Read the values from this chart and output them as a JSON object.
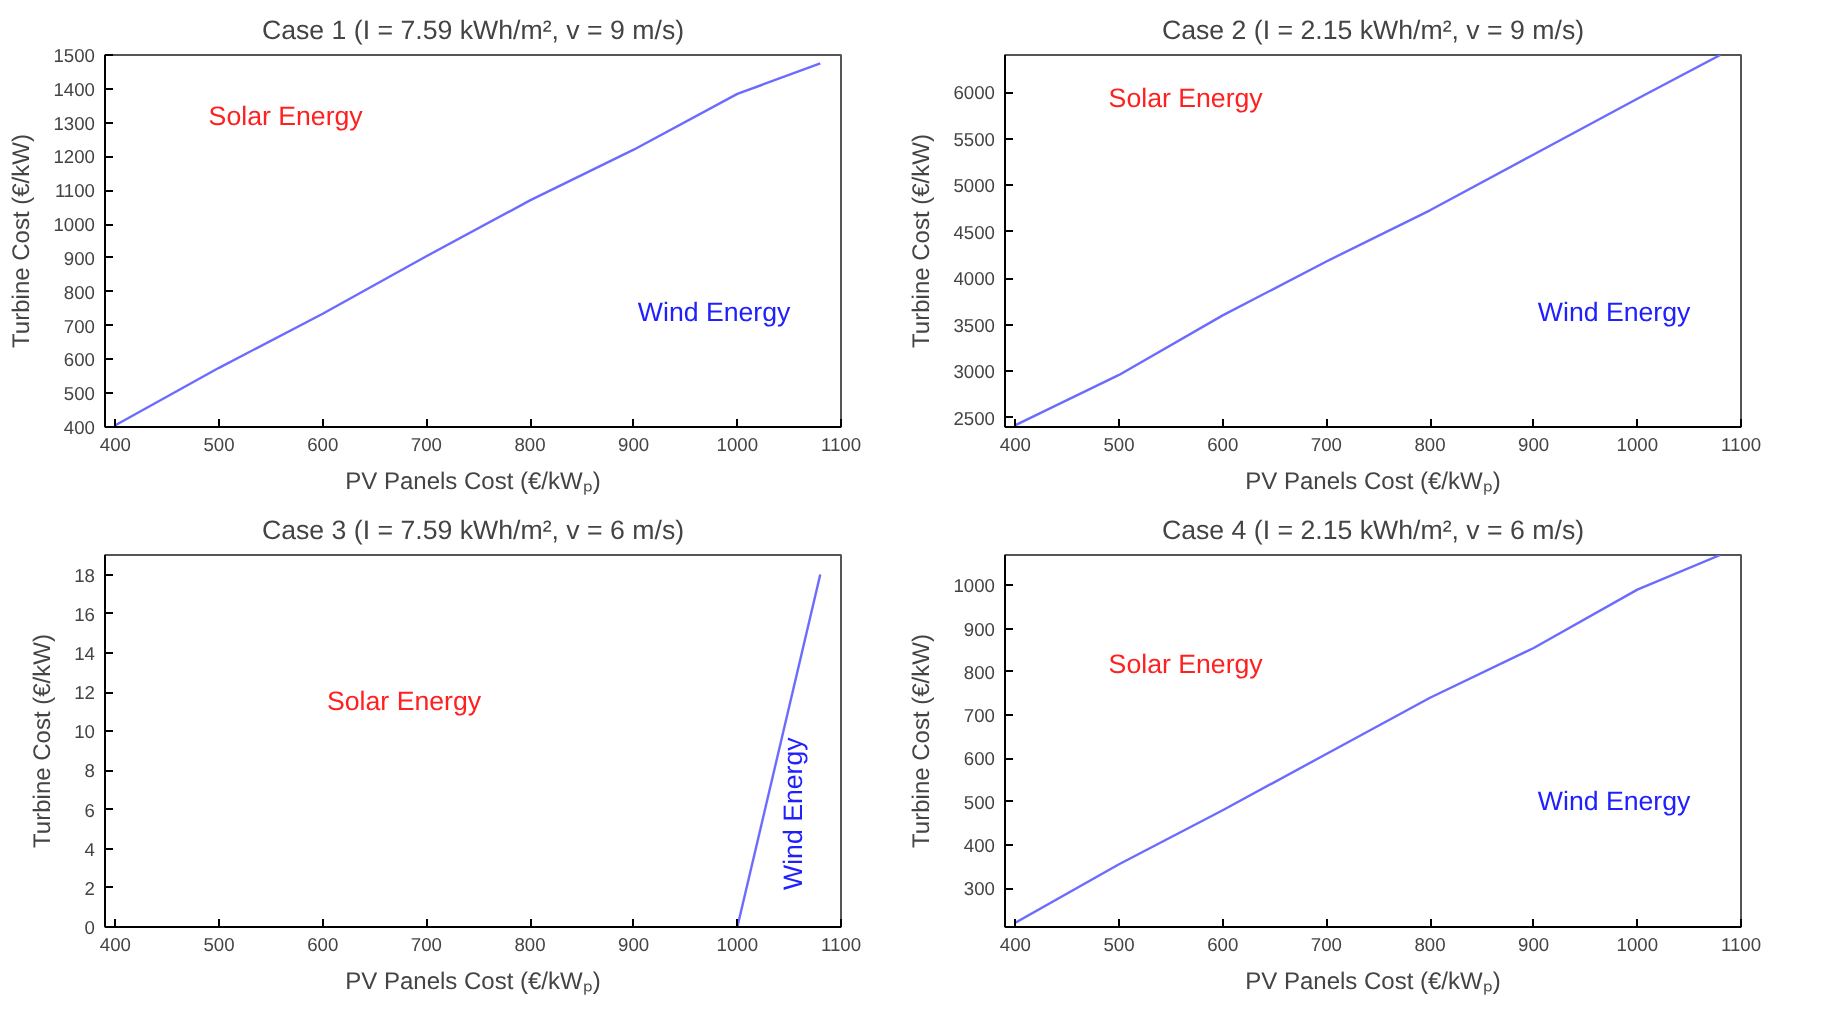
{
  "chart_data": [
    {
      "type": "line",
      "title": "Case 1 (I = 7.59 kWh/m², v = 9 m/s)",
      "xlabel": "PV Panels Cost (€/kWₚ)",
      "ylabel": "Turbine Cost (€/kW)",
      "x": [
        400,
        500,
        600,
        700,
        800,
        900,
        1000,
        1080
      ],
      "series": [
        {
          "color": "#6b6bff",
          "values": [
            405,
            575,
            735,
            905,
            1070,
            1220,
            1385,
            1475
          ]
        }
      ],
      "xlim": [
        390,
        1100
      ],
      "xticks": [
        400,
        500,
        600,
        700,
        800,
        900,
        1000,
        1100
      ],
      "ylim": [
        400,
        1500
      ],
      "yticks": [
        400,
        500,
        600,
        700,
        800,
        900,
        1000,
        1100,
        1200,
        1300,
        1400,
        1500
      ],
      "grid": false,
      "annotations": [
        "Solar Energy",
        "Wind Energy"
      ]
    },
    {
      "type": "line",
      "title": "Case 2 (I = 2.15 kWh/m², v = 9 m/s)",
      "xlabel": "PV Panels Cost (€/kWₚ)",
      "ylabel": "Turbine Cost (€/kW)",
      "x": [
        400,
        500,
        600,
        700,
        800,
        900,
        1000,
        1080
      ],
      "series": [
        {
          "color": "#6b6bff",
          "values": [
            2420,
            2960,
            3600,
            4180,
            4730,
            5330,
            5930,
            6400
          ]
        }
      ],
      "xlim": [
        390,
        1100
      ],
      "xticks": [
        400,
        500,
        600,
        700,
        800,
        900,
        1000,
        1100
      ],
      "ylim": [
        2400,
        6400
      ],
      "yticks": [
        2500,
        3000,
        3500,
        4000,
        4500,
        5000,
        5500,
        6000
      ],
      "grid": false,
      "annotations": [
        "Solar Energy",
        "Wind Energy"
      ]
    },
    {
      "type": "line",
      "title": "Case 3 (I = 7.59 kWh/m², v = 6 m/s)",
      "xlabel": "PV Panels Cost (€/kWₚ)",
      "ylabel": "Turbine Cost (€/kW)",
      "x": [
        1000,
        1080
      ],
      "series": [
        {
          "color": "#6b6bff",
          "values": [
            0,
            18
          ]
        }
      ],
      "xlim": [
        390,
        1100
      ],
      "xticks": [
        400,
        500,
        600,
        700,
        800,
        900,
        1000,
        1100
      ],
      "ylim": [
        0,
        19
      ],
      "yticks": [
        0,
        2,
        4,
        6,
        8,
        10,
        12,
        14,
        16,
        18
      ],
      "grid": false,
      "annotations": [
        "Solar Energy",
        "Wind Energy"
      ]
    },
    {
      "type": "line",
      "title": "Case 4 (I = 2.15 kWh/m², v = 6 m/s)",
      "xlabel": "PV Panels Cost (€/kWₚ)",
      "ylabel": "Turbine Cost (€/kW)",
      "x": [
        400,
        500,
        600,
        700,
        800,
        900,
        1000,
        1080
      ],
      "series": [
        {
          "color": "#6b6bff",
          "values": [
            220,
            355,
            480,
            610,
            740,
            855,
            990,
            1070
          ]
        }
      ],
      "xlim": [
        390,
        1100
      ],
      "xticks": [
        400,
        500,
        600,
        700,
        800,
        900,
        1000,
        1100
      ],
      "ylim": [
        210,
        1070
      ],
      "yticks": [
        300,
        400,
        500,
        600,
        700,
        800,
        900,
        1000
      ],
      "grid": false,
      "annotations": [
        "Solar Energy",
        "Wind Energy"
      ]
    }
  ]
}
